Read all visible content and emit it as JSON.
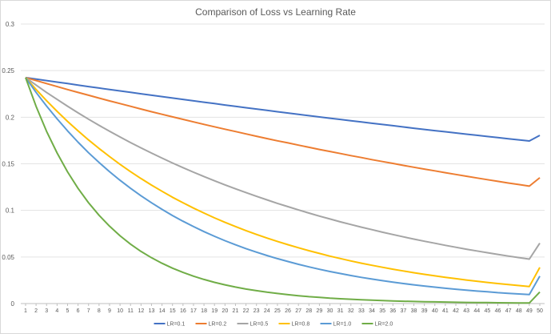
{
  "chart_data": {
    "type": "line",
    "title": "Comparison of Loss vs Learning Rate",
    "xlabel": "",
    "ylabel": "",
    "ylim": [
      0,
      0.3
    ],
    "y_ticks": [
      "0",
      "0.05",
      "0.1",
      "0.15",
      "0.2",
      "0.25",
      "0.3"
    ],
    "x": [
      1,
      2,
      3,
      4,
      5,
      6,
      7,
      8,
      9,
      10,
      11,
      12,
      13,
      14,
      15,
      16,
      17,
      18,
      19,
      20,
      21,
      22,
      23,
      24,
      25,
      26,
      27,
      28,
      29,
      30,
      31,
      32,
      33,
      34,
      35,
      36,
      37,
      38,
      39,
      40,
      41,
      42,
      43,
      44,
      45,
      46,
      47,
      48,
      49,
      50
    ],
    "grid": "horizontal",
    "legend_position": "bottom",
    "series": [
      {
        "name": "LR=0.1",
        "color": "#4472c4",
        "values": [
          0.2425,
          0.2409,
          0.2393,
          0.2377,
          0.2361,
          0.2345,
          0.2329,
          0.2313,
          0.2298,
          0.2282,
          0.2267,
          0.2251,
          0.2236,
          0.2221,
          0.2206,
          0.2191,
          0.2176,
          0.2161,
          0.2146,
          0.2131,
          0.2117,
          0.2102,
          0.2088,
          0.2074,
          0.2059,
          0.2045,
          0.2031,
          0.2017,
          0.2003,
          0.1989,
          0.1976,
          0.1962,
          0.1949,
          0.1935,
          0.1922,
          0.1909,
          0.1895,
          0.1882,
          0.1869,
          0.1856,
          0.1844,
          0.1831,
          0.1818,
          0.1806,
          0.1793,
          0.1781,
          0.1769,
          0.1757,
          0.1745,
          0.1805
        ]
      },
      {
        "name": "LR=0.2",
        "color": "#ed7d31",
        "values": [
          0.2425,
          0.2393,
          0.2361,
          0.2329,
          0.2297,
          0.2266,
          0.2236,
          0.2205,
          0.2175,
          0.2146,
          0.2117,
          0.2088,
          0.2059,
          0.2031,
          0.2004,
          0.1977,
          0.195,
          0.1923,
          0.1897,
          0.1871,
          0.1846,
          0.1821,
          0.1796,
          0.1771,
          0.1747,
          0.1724,
          0.17,
          0.1677,
          0.1654,
          0.1632,
          0.161,
          0.1588,
          0.1567,
          0.1545,
          0.1524,
          0.1504,
          0.1483,
          0.1463,
          0.1443,
          0.1424,
          0.1405,
          0.1386,
          0.1367,
          0.1348,
          0.133,
          0.1312,
          0.1294,
          0.1277,
          0.126,
          0.135
        ]
      },
      {
        "name": "LR=0.5",
        "color": "#a5a5a5",
        "values": [
          0.2425,
          0.2345,
          0.2266,
          0.2191,
          0.2118,
          0.2047,
          0.1979,
          0.1913,
          0.1849,
          0.1788,
          0.1728,
          0.1671,
          0.1615,
          0.1561,
          0.1509,
          0.1459,
          0.141,
          0.1363,
          0.1318,
          0.1274,
          0.1232,
          0.1191,
          0.1151,
          0.1113,
          0.1075,
          0.104,
          0.1005,
          0.0971,
          0.0939,
          0.0908,
          0.0877,
          0.0848,
          0.082,
          0.0793,
          0.0766,
          0.0741,
          0.0716,
          0.0692,
          0.0669,
          0.0647,
          0.0625,
          0.0604,
          0.0584,
          0.0565,
          0.0546,
          0.0528,
          0.051,
          0.0493,
          0.0477,
          0.0648
        ]
      },
      {
        "name": "LR=0.8",
        "color": "#ffc000",
        "values": [
          0.2425,
          0.2298,
          0.2177,
          0.2063,
          0.1955,
          0.1853,
          0.1756,
          0.1664,
          0.1577,
          0.1494,
          0.1416,
          0.1342,
          0.1271,
          0.1205,
          0.1141,
          0.1082,
          0.1025,
          0.0971,
          0.092,
          0.0872,
          0.0827,
          0.0783,
          0.0742,
          0.0703,
          0.0667,
          0.0632,
          0.0599,
          0.0567,
          0.0538,
          0.0509,
          0.0483,
          0.0457,
          0.0433,
          0.0411,
          0.0389,
          0.0369,
          0.035,
          0.0331,
          0.0314,
          0.0297,
          0.0282,
          0.0267,
          0.0253,
          0.024,
          0.0227,
          0.0215,
          0.0204,
          0.0193,
          0.0183,
          0.0388
        ]
      },
      {
        "name": "LR=1.0",
        "color": "#5b9bd5",
        "values": [
          0.2425,
          0.2267,
          0.212,
          0.1982,
          0.1853,
          0.1732,
          0.1619,
          0.1514,
          0.1415,
          0.1323,
          0.1237,
          0.1157,
          0.1081,
          0.1011,
          0.0945,
          0.0884,
          0.0826,
          0.0772,
          0.0722,
          0.0675,
          0.0631,
          0.059,
          0.0552,
          0.0516,
          0.0482,
          0.0451,
          0.0421,
          0.0394,
          0.0368,
          0.0344,
          0.0322,
          0.0301,
          0.0281,
          0.0263,
          0.0246,
          0.023,
          0.0215,
          0.0201,
          0.0188,
          0.0176,
          0.0164,
          0.0154,
          0.0144,
          0.0134,
          0.0126,
          0.0117,
          0.011,
          0.0103,
          0.0096,
          0.0294
        ]
      },
      {
        "name": "LR=2.0",
        "color": "#70ad47",
        "values": [
          0.2425,
          0.2117,
          0.1849,
          0.1616,
          0.1413,
          0.1236,
          0.1082,
          0.0947,
          0.083,
          0.0727,
          0.0638,
          0.056,
          0.0492,
          0.0432,
          0.038,
          0.0334,
          0.0294,
          0.0259,
          0.0228,
          0.0201,
          0.0177,
          0.0156,
          0.0138,
          0.0122,
          0.0108,
          0.0095,
          0.0084,
          0.0074,
          0.0066,
          0.0058,
          0.0052,
          0.0046,
          0.004,
          0.0036,
          0.0032,
          0.0028,
          0.0025,
          0.0022,
          0.002,
          0.0018,
          0.0016,
          0.0014,
          0.0012,
          0.0011,
          0.001,
          0.0009,
          0.0008,
          0.0007,
          0.0006,
          0.0124
        ]
      }
    ]
  }
}
